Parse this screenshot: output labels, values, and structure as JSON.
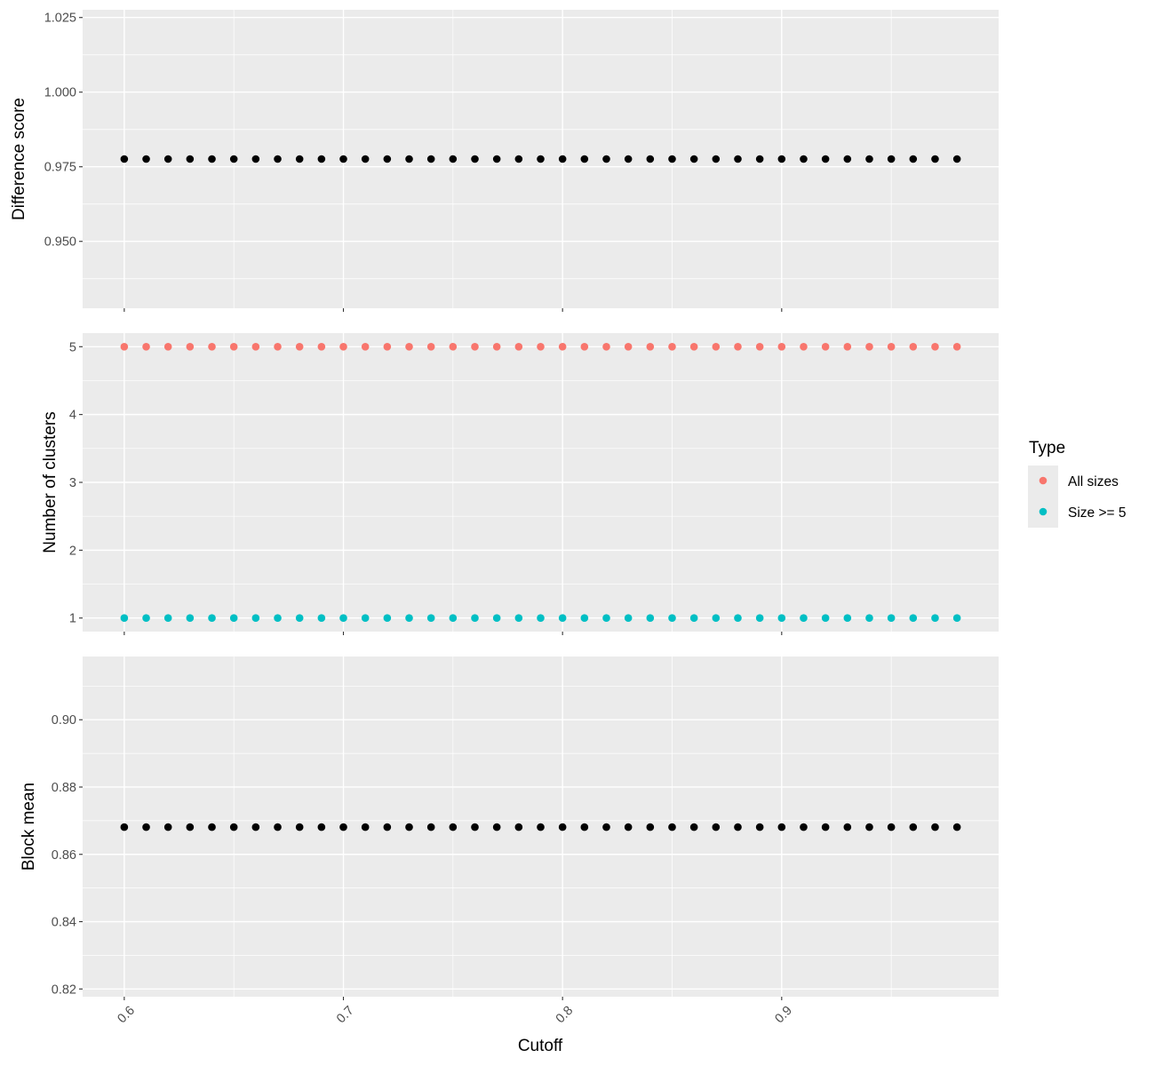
{
  "chart_data": {
    "type": "scatter",
    "x_values": [
      0.6,
      0.61,
      0.62,
      0.63,
      0.64,
      0.65,
      0.66,
      0.67,
      0.68,
      0.69,
      0.7,
      0.71,
      0.72,
      0.73,
      0.74,
      0.75,
      0.76,
      0.77,
      0.78,
      0.79,
      0.8,
      0.81,
      0.82,
      0.83,
      0.84,
      0.85,
      0.86,
      0.87,
      0.88,
      0.89,
      0.9,
      0.91,
      0.92,
      0.93,
      0.94,
      0.95,
      0.96,
      0.97,
      0.98
    ],
    "xlabel": "Cutoff",
    "xlim": [
      0.581,
      0.999
    ],
    "x_ticks": [
      0.6,
      0.7,
      0.8,
      0.9
    ],
    "x_tick_labels": [
      "0.6",
      "0.7",
      "0.8",
      "0.9"
    ],
    "x_tick_rotation": "-45deg",
    "grid": true,
    "panel_background": "#ebebeb",
    "grid_color": "#ffffff",
    "panels": [
      {
        "ylabel": "Difference score",
        "ylim": [
          0.9276,
          1.0276
        ],
        "y_ticks": [
          0.95,
          0.975,
          1.0,
          1.025
        ],
        "y_tick_labels": [
          "0.950",
          "0.975",
          "1.000",
          "1.025"
        ],
        "series": [
          {
            "color": "#000000",
            "y": 0.9776
          }
        ]
      },
      {
        "ylabel": "Number of clusters",
        "ylim": [
          0.8,
          5.2
        ],
        "y_ticks": [
          1,
          2,
          3,
          4,
          5
        ],
        "y_tick_labels": [
          "1",
          "2",
          "3",
          "4",
          "5"
        ],
        "series": [
          {
            "name": "All sizes",
            "color": "#f8766d",
            "y": 5
          },
          {
            "name": "Size >= 5",
            "color": "#00bfc4",
            "y": 1
          }
        ]
      },
      {
        "ylabel": "Block mean",
        "ylim": [
          0.8177,
          0.9188
        ],
        "y_ticks": [
          0.82,
          0.84,
          0.86,
          0.88,
          0.9
        ],
        "y_tick_labels": [
          "0.82",
          "0.84",
          "0.86",
          "0.88",
          "0.90"
        ],
        "series": [
          {
            "color": "#000000",
            "y": 0.8681
          }
        ]
      }
    ],
    "legend": {
      "title": "Type",
      "position": "right",
      "items": [
        {
          "label": "All sizes",
          "color": "#f8766d"
        },
        {
          "label": "Size >= 5",
          "color": "#00bfc4"
        }
      ]
    }
  }
}
